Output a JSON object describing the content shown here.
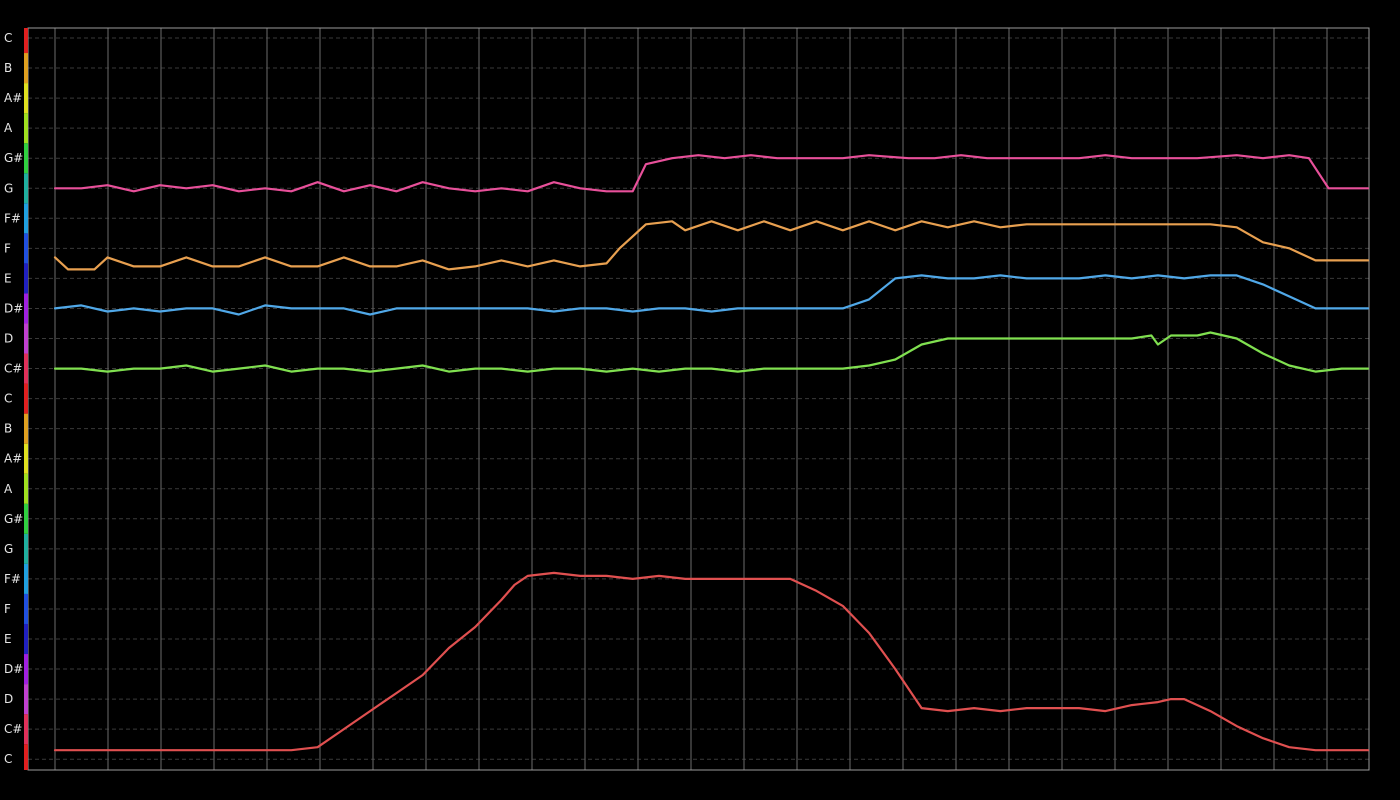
{
  "chart_data": {
    "type": "line",
    "note_labels": [
      "C",
      "C#",
      "D",
      "D#",
      "E",
      "F",
      "F#",
      "G",
      "G#",
      "A",
      "A#",
      "B",
      "C",
      "C#",
      "D",
      "D#",
      "E",
      "F",
      "F#",
      "G",
      "G#",
      "A",
      "A#",
      "B",
      "C"
    ],
    "note_colors": {
      "C": "#e02020",
      "C#": "#e0305a",
      "D": "#c040d0",
      "D#": "#a020e0",
      "E": "#2020c0",
      "F": "#2050e0",
      "F#": "#20a0e0",
      "G": "#20b0a0",
      "G#": "#30d040",
      "A": "#a0e020",
      "A#": "#e0e020",
      "B": "#e0a020"
    },
    "ylim": [
      0,
      24
    ],
    "xlim": [
      0,
      100
    ],
    "grid_vertical_count": 25,
    "series": [
      {
        "color": "#e8509a",
        "points": [
          [
            0,
            19.0
          ],
          [
            2,
            19.0
          ],
          [
            4,
            19.1
          ],
          [
            6,
            18.9
          ],
          [
            8,
            19.1
          ],
          [
            10,
            19.0
          ],
          [
            12,
            19.1
          ],
          [
            14,
            18.9
          ],
          [
            16,
            19.0
          ],
          [
            18,
            18.9
          ],
          [
            20,
            19.2
          ],
          [
            22,
            18.9
          ],
          [
            24,
            19.1
          ],
          [
            26,
            18.9
          ],
          [
            28,
            19.2
          ],
          [
            30,
            19.0
          ],
          [
            32,
            18.9
          ],
          [
            34,
            19.0
          ],
          [
            36,
            18.9
          ],
          [
            38,
            19.2
          ],
          [
            40,
            19.0
          ],
          [
            42,
            18.9
          ],
          [
            44,
            18.9
          ],
          [
            45,
            19.8
          ],
          [
            47,
            20.0
          ],
          [
            49,
            20.1
          ],
          [
            51,
            20.0
          ],
          [
            53,
            20.1
          ],
          [
            55,
            20.0
          ],
          [
            57,
            20.0
          ],
          [
            60,
            20.0
          ],
          [
            62,
            20.1
          ],
          [
            65,
            20.0
          ],
          [
            67,
            20.0
          ],
          [
            69,
            20.1
          ],
          [
            71,
            20.0
          ],
          [
            73,
            20.0
          ],
          [
            76,
            20.0
          ],
          [
            78,
            20.0
          ],
          [
            80,
            20.1
          ],
          [
            82,
            20.0
          ],
          [
            85,
            20.0
          ],
          [
            87,
            20.0
          ],
          [
            90,
            20.1
          ],
          [
            92,
            20.0
          ],
          [
            94,
            20.1
          ],
          [
            95.5,
            20.0
          ],
          [
            97,
            19.0
          ],
          [
            99,
            19.0
          ],
          [
            100,
            19.0
          ]
        ]
      },
      {
        "color": "#e8a050",
        "points": [
          [
            0,
            16.7
          ],
          [
            1,
            16.3
          ],
          [
            3,
            16.3
          ],
          [
            4,
            16.7
          ],
          [
            6,
            16.4
          ],
          [
            8,
            16.4
          ],
          [
            10,
            16.7
          ],
          [
            12,
            16.4
          ],
          [
            14,
            16.4
          ],
          [
            16,
            16.7
          ],
          [
            18,
            16.4
          ],
          [
            20,
            16.4
          ],
          [
            22,
            16.7
          ],
          [
            24,
            16.4
          ],
          [
            26,
            16.4
          ],
          [
            28,
            16.6
          ],
          [
            30,
            16.3
          ],
          [
            32,
            16.4
          ],
          [
            34,
            16.6
          ],
          [
            36,
            16.4
          ],
          [
            38,
            16.6
          ],
          [
            40,
            16.4
          ],
          [
            42,
            16.5
          ],
          [
            43,
            17.0
          ],
          [
            45,
            17.8
          ],
          [
            47,
            17.9
          ],
          [
            48,
            17.6
          ],
          [
            50,
            17.9
          ],
          [
            52,
            17.6
          ],
          [
            54,
            17.9
          ],
          [
            56,
            17.6
          ],
          [
            58,
            17.9
          ],
          [
            60,
            17.6
          ],
          [
            62,
            17.9
          ],
          [
            64,
            17.6
          ],
          [
            66,
            17.9
          ],
          [
            68,
            17.7
          ],
          [
            70,
            17.9
          ],
          [
            72,
            17.7
          ],
          [
            74,
            17.8
          ],
          [
            76,
            17.8
          ],
          [
            78,
            17.8
          ],
          [
            80,
            17.8
          ],
          [
            82,
            17.8
          ],
          [
            84,
            17.8
          ],
          [
            86,
            17.8
          ],
          [
            88,
            17.8
          ],
          [
            90,
            17.7
          ],
          [
            92,
            17.2
          ],
          [
            94,
            17.0
          ],
          [
            96,
            16.6
          ],
          [
            98,
            16.6
          ],
          [
            99.5,
            16.6
          ],
          [
            100,
            16.6
          ]
        ]
      },
      {
        "color": "#50a8e8",
        "points": [
          [
            0,
            15.0
          ],
          [
            2,
            15.1
          ],
          [
            4,
            14.9
          ],
          [
            6,
            15.0
          ],
          [
            8,
            14.9
          ],
          [
            10,
            15.0
          ],
          [
            12,
            15.0
          ],
          [
            14,
            14.8
          ],
          [
            16,
            15.1
          ],
          [
            18,
            15.0
          ],
          [
            20,
            15.0
          ],
          [
            22,
            15.0
          ],
          [
            24,
            14.8
          ],
          [
            26,
            15.0
          ],
          [
            28,
            15.0
          ],
          [
            30,
            15.0
          ],
          [
            32,
            15.0
          ],
          [
            34,
            15.0
          ],
          [
            36,
            15.0
          ],
          [
            38,
            14.9
          ],
          [
            40,
            15.0
          ],
          [
            42,
            15.0
          ],
          [
            44,
            14.9
          ],
          [
            46,
            15.0
          ],
          [
            48,
            15.0
          ],
          [
            50,
            14.9
          ],
          [
            52,
            15.0
          ],
          [
            54,
            15.0
          ],
          [
            56,
            15.0
          ],
          [
            58,
            15.0
          ],
          [
            60,
            15.0
          ],
          [
            62,
            15.3
          ],
          [
            64,
            16.0
          ],
          [
            66,
            16.1
          ],
          [
            68,
            16.0
          ],
          [
            70,
            16.0
          ],
          [
            72,
            16.1
          ],
          [
            74,
            16.0
          ],
          [
            76,
            16.0
          ],
          [
            78,
            16.0
          ],
          [
            80,
            16.1
          ],
          [
            82,
            16.0
          ],
          [
            84,
            16.1
          ],
          [
            86,
            16.0
          ],
          [
            88,
            16.1
          ],
          [
            90,
            16.1
          ],
          [
            92,
            15.8
          ],
          [
            94,
            15.4
          ],
          [
            96,
            15.0
          ],
          [
            98,
            15.0
          ],
          [
            100,
            15.0
          ]
        ]
      },
      {
        "color": "#80e050",
        "points": [
          [
            0,
            13.0
          ],
          [
            2,
            13.0
          ],
          [
            4,
            12.9
          ],
          [
            6,
            13.0
          ],
          [
            8,
            13.0
          ],
          [
            10,
            13.1
          ],
          [
            12,
            12.9
          ],
          [
            14,
            13.0
          ],
          [
            16,
            13.1
          ],
          [
            18,
            12.9
          ],
          [
            20,
            13.0
          ],
          [
            22,
            13.0
          ],
          [
            24,
            12.9
          ],
          [
            26,
            13.0
          ],
          [
            28,
            13.1
          ],
          [
            30,
            12.9
          ],
          [
            32,
            13.0
          ],
          [
            34,
            13.0
          ],
          [
            36,
            12.9
          ],
          [
            38,
            13.0
          ],
          [
            40,
            13.0
          ],
          [
            42,
            12.9
          ],
          [
            44,
            13.0
          ],
          [
            46,
            12.9
          ],
          [
            48,
            13.0
          ],
          [
            50,
            13.0
          ],
          [
            52,
            12.9
          ],
          [
            54,
            13.0
          ],
          [
            56,
            13.0
          ],
          [
            58,
            13.0
          ],
          [
            60,
            13.0
          ],
          [
            62,
            13.1
          ],
          [
            64,
            13.3
          ],
          [
            66,
            13.8
          ],
          [
            68,
            14.0
          ],
          [
            70,
            14.0
          ],
          [
            72,
            14.0
          ],
          [
            74,
            14.0
          ],
          [
            76,
            14.0
          ],
          [
            78,
            14.0
          ],
          [
            80,
            14.0
          ],
          [
            82,
            14.0
          ],
          [
            83.5,
            14.1
          ],
          [
            84,
            13.8
          ],
          [
            85,
            14.1
          ],
          [
            87,
            14.1
          ],
          [
            88,
            14.2
          ],
          [
            90,
            14.0
          ],
          [
            92,
            13.5
          ],
          [
            94,
            13.1
          ],
          [
            96,
            12.9
          ],
          [
            98,
            13.0
          ],
          [
            100,
            13.0
          ]
        ]
      },
      {
        "color": "#e05050",
        "points": [
          [
            0,
            0.3
          ],
          [
            2,
            0.3
          ],
          [
            4,
            0.3
          ],
          [
            6,
            0.3
          ],
          [
            8,
            0.3
          ],
          [
            10,
            0.3
          ],
          [
            12,
            0.3
          ],
          [
            14,
            0.3
          ],
          [
            16,
            0.3
          ],
          [
            18,
            0.3
          ],
          [
            20,
            0.4
          ],
          [
            22,
            1.0
          ],
          [
            24,
            1.6
          ],
          [
            26,
            2.2
          ],
          [
            28,
            2.8
          ],
          [
            30,
            3.7
          ],
          [
            32,
            4.4
          ],
          [
            34,
            5.3
          ],
          [
            35,
            5.8
          ],
          [
            36,
            6.1
          ],
          [
            38,
            6.2
          ],
          [
            40,
            6.1
          ],
          [
            42,
            6.1
          ],
          [
            44,
            6.0
          ],
          [
            46,
            6.1
          ],
          [
            48,
            6.0
          ],
          [
            50,
            6.0
          ],
          [
            52,
            6.0
          ],
          [
            54,
            6.0
          ],
          [
            56,
            6.0
          ],
          [
            58,
            5.6
          ],
          [
            60,
            5.1
          ],
          [
            62,
            4.2
          ],
          [
            64,
            3.0
          ],
          [
            66,
            1.7
          ],
          [
            68,
            1.6
          ],
          [
            70,
            1.7
          ],
          [
            72,
            1.6
          ],
          [
            74,
            1.7
          ],
          [
            76,
            1.7
          ],
          [
            78,
            1.7
          ],
          [
            80,
            1.6
          ],
          [
            82,
            1.8
          ],
          [
            84,
            1.9
          ],
          [
            85,
            2.0
          ],
          [
            86,
            2.0
          ],
          [
            88,
            1.6
          ],
          [
            90,
            1.1
          ],
          [
            92,
            0.7
          ],
          [
            94,
            0.4
          ],
          [
            96,
            0.3
          ],
          [
            98,
            0.3
          ],
          [
            100,
            0.3
          ]
        ]
      }
    ]
  }
}
